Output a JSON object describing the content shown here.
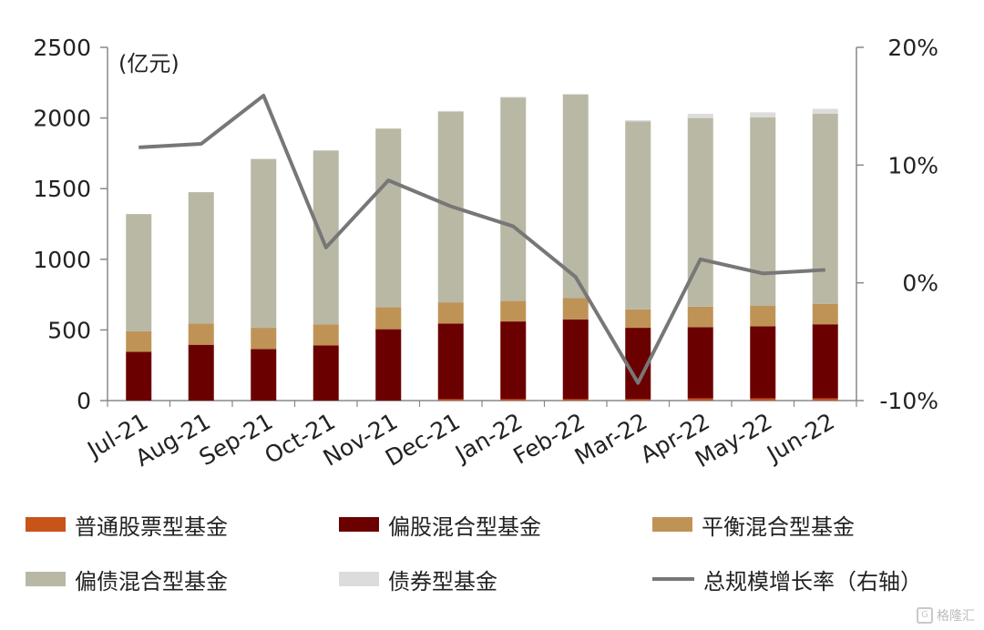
{
  "chart_data": {
    "type": "bar",
    "stacked": true,
    "unit_label": "(亿元)",
    "categories": [
      "Jul-21",
      "Aug-21",
      "Sep-21",
      "Oct-21",
      "Nov-21",
      "Dec-21",
      "Jan-22",
      "Feb-22",
      "Mar-22",
      "Apr-22",
      "May-22",
      "Jun-22"
    ],
    "y_left": {
      "min": 0,
      "max": 2500,
      "ticks": [
        "0",
        "500",
        "1000",
        "1500",
        "2000",
        "2500"
      ]
    },
    "y_right": {
      "min": -10,
      "max": 20,
      "ticks": [
        "-10%",
        "0%",
        "10%",
        "20%"
      ]
    },
    "series": [
      {
        "name": "普通股票型基金",
        "color": "#c8541a",
        "axis": "left",
        "values": [
          0,
          0,
          0,
          0,
          0,
          10,
          10,
          10,
          10,
          15,
          15,
          15
        ]
      },
      {
        "name": "偏股混合型基金",
        "color": "#6b0000",
        "axis": "left",
        "values": [
          345,
          395,
          365,
          390,
          505,
          535,
          550,
          565,
          505,
          505,
          510,
          525
        ]
      },
      {
        "name": "平衡混合型基金",
        "color": "#bf9356",
        "axis": "left",
        "values": [
          145,
          150,
          150,
          150,
          155,
          150,
          145,
          150,
          130,
          145,
          145,
          145
        ]
      },
      {
        "name": "偏债混合型基金",
        "color": "#b9b8a5",
        "axis": "left",
        "values": [
          830,
          930,
          1195,
          1230,
          1265,
          1350,
          1440,
          1440,
          1330,
          1335,
          1335,
          1345
        ]
      },
      {
        "name": "债券型基金",
        "color": "#dcdcdc",
        "axis": "left",
        "values": [
          0,
          0,
          0,
          0,
          0,
          5,
          5,
          5,
          10,
          30,
          35,
          35
        ]
      },
      {
        "name": "总规模增长率（右轴）",
        "color": "#777777",
        "axis": "right",
        "type": "line",
        "values": [
          11.5,
          11.8,
          15.9,
          3.0,
          8.7,
          6.5,
          4.8,
          0.5,
          -8.5,
          2.0,
          0.8,
          1.1
        ]
      }
    ],
    "grid": false,
    "legend_position": "bottom"
  },
  "watermark": {
    "text": "格隆汇",
    "icon": "logo-icon"
  }
}
